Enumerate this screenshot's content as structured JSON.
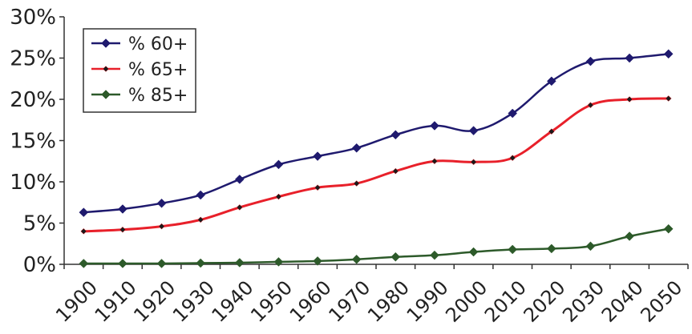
{
  "chart_data": {
    "type": "line",
    "title": "",
    "xlabel": "",
    "ylabel": "",
    "x": [
      "1900",
      "1910",
      "1920",
      "1930",
      "1940",
      "1950",
      "1960",
      "1970",
      "1980",
      "1990",
      "2000",
      "2010",
      "2020",
      "2030",
      "2040",
      "2050"
    ],
    "ylim": [
      0,
      30
    ],
    "yticks": [
      0,
      5,
      10,
      15,
      20,
      25,
      30
    ],
    "ytick_labels": [
      "0%",
      "5%",
      "10%",
      "15%",
      "20%",
      "25%",
      "30%"
    ],
    "grid": false,
    "legend_position": "top-left",
    "series": [
      {
        "name": "% 60+",
        "color": "#1f1a6e",
        "marker": "diamond",
        "values": [
          6.3,
          6.7,
          7.4,
          8.4,
          10.3,
          12.1,
          13.1,
          14.1,
          15.7,
          16.8,
          16.2,
          18.3,
          22.2,
          24.6,
          25.0,
          25.5
        ]
      },
      {
        "name": "% 65+",
        "color": "#e8202a",
        "marker": "small-diamond",
        "values": [
          4.0,
          4.2,
          4.6,
          5.4,
          6.9,
          8.2,
          9.3,
          9.8,
          11.3,
          12.5,
          12.4,
          12.9,
          16.1,
          19.3,
          20.0,
          20.1
        ]
      },
      {
        "name": "% 85+",
        "color": "#2d5a2a",
        "marker": "diamond",
        "values": [
          0.1,
          0.1,
          0.1,
          0.15,
          0.2,
          0.3,
          0.4,
          0.6,
          0.9,
          1.1,
          1.5,
          1.8,
          1.9,
          2.2,
          3.4,
          4.3
        ]
      }
    ]
  }
}
